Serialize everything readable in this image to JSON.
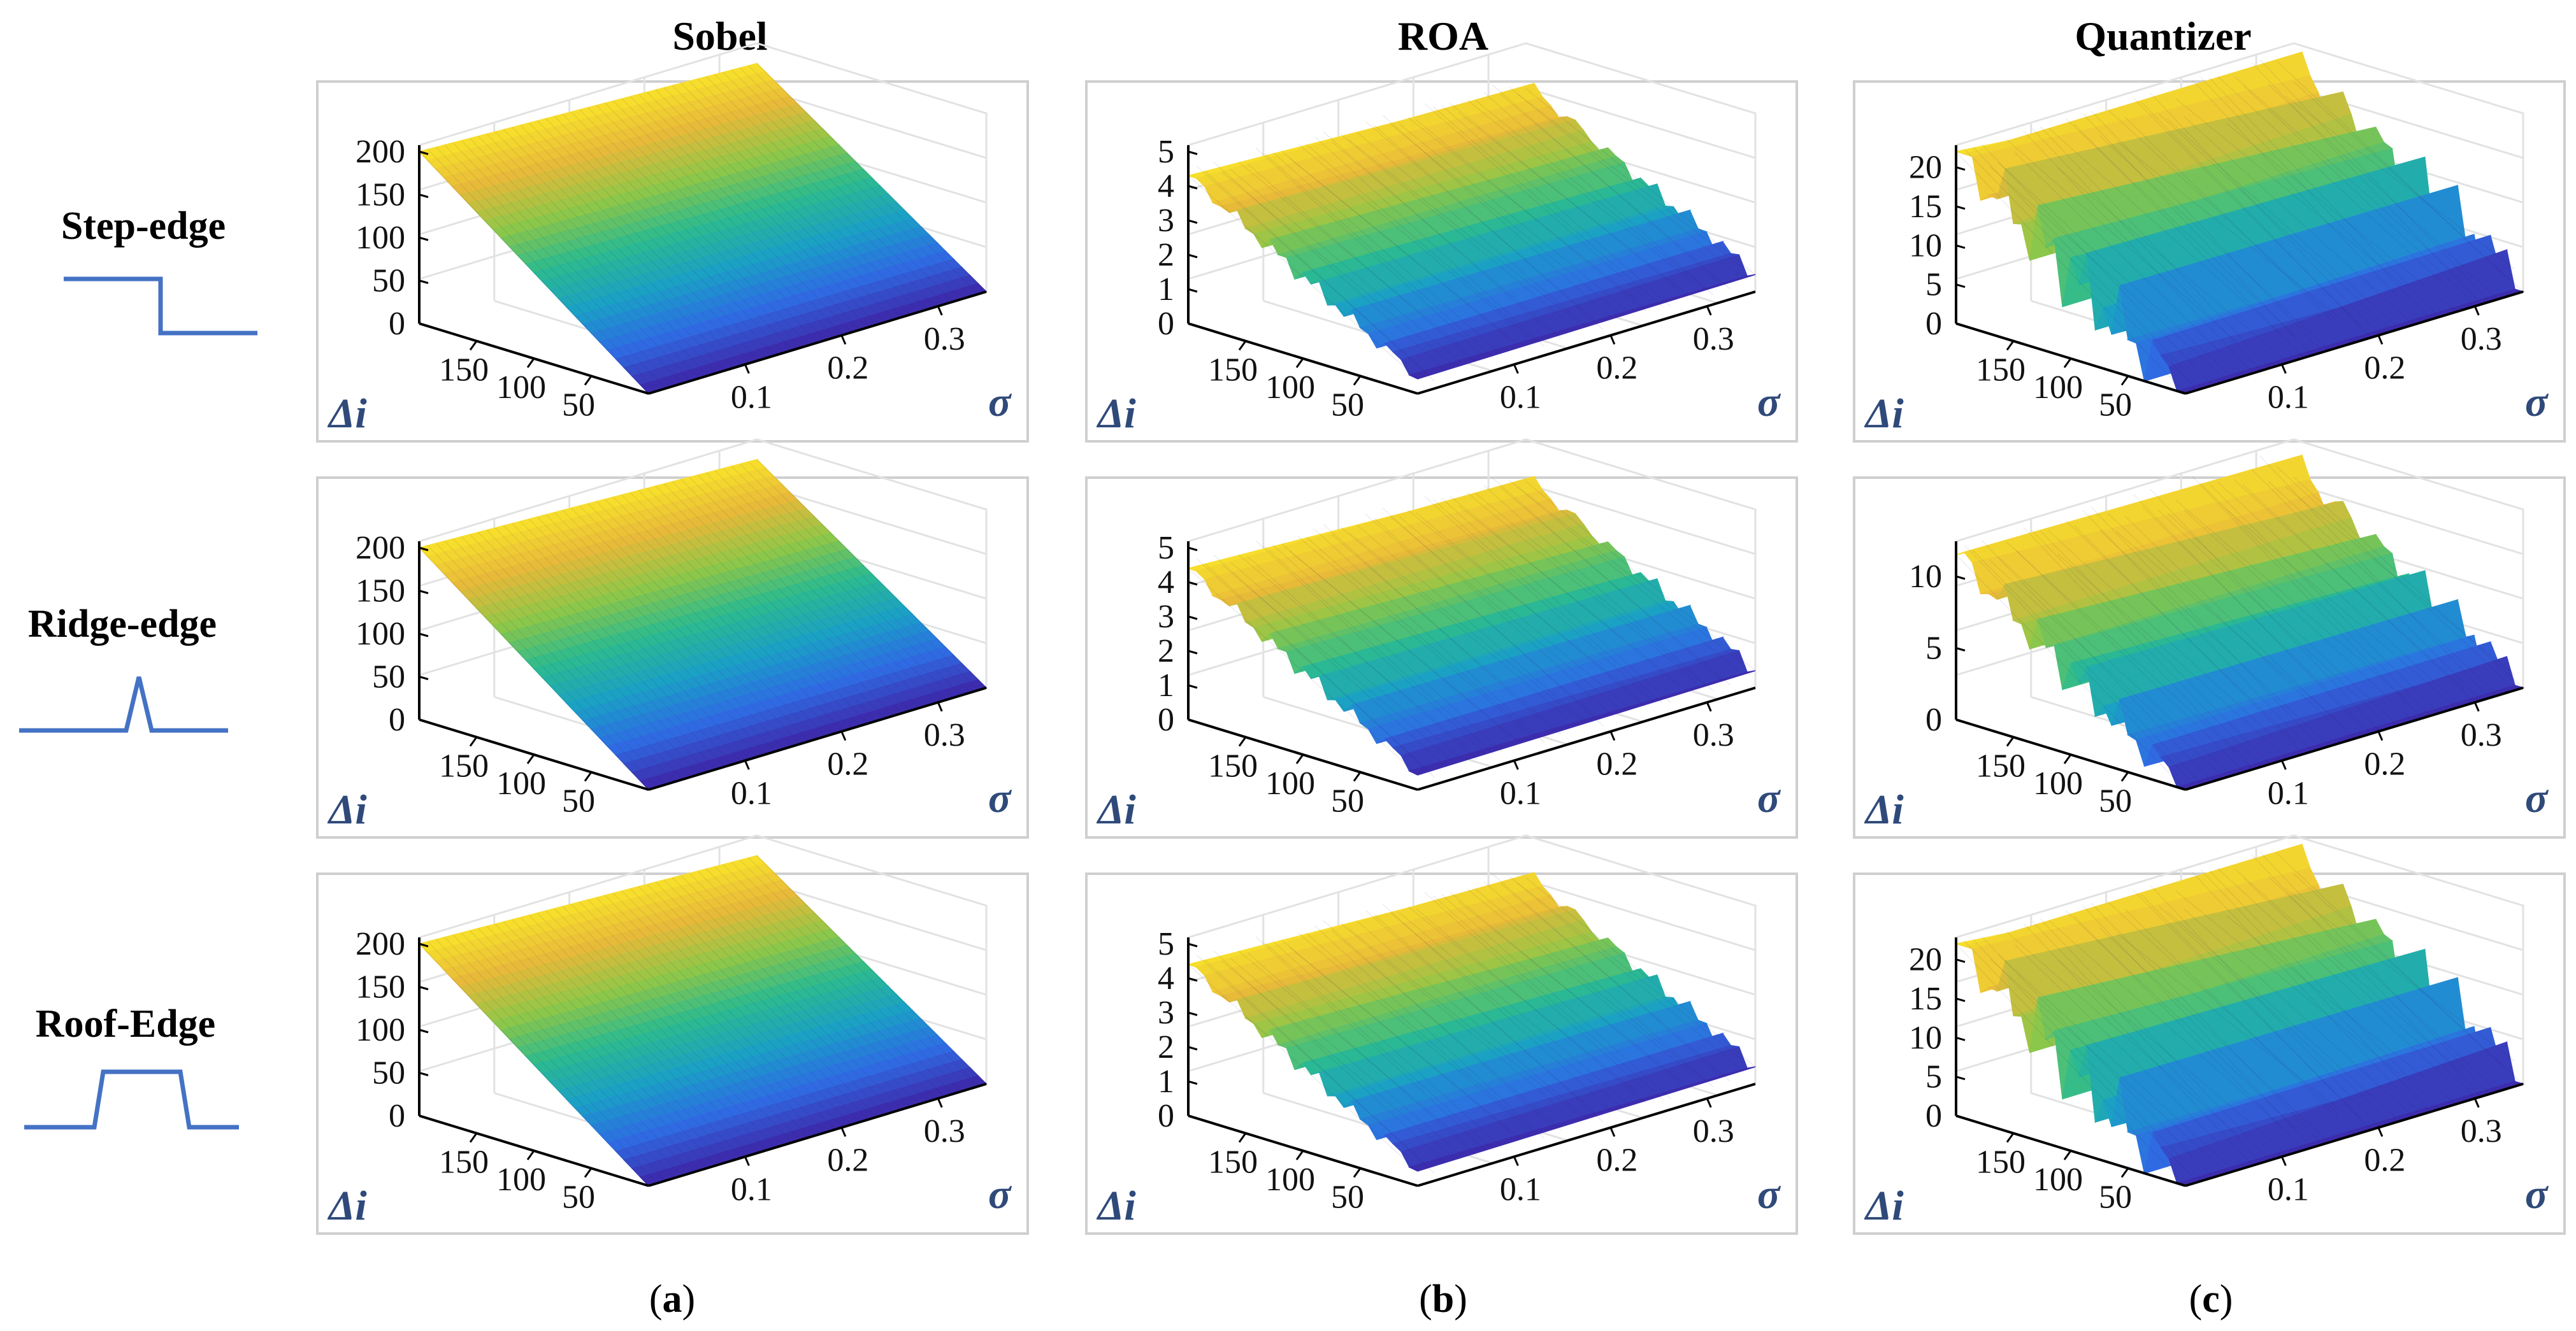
{
  "chart_data": {
    "type": "surface",
    "columns": [
      {
        "title": "Sobel",
        "caption": "a"
      },
      {
        "title": "ROA",
        "caption": "b"
      },
      {
        "title": "Quantizer",
        "caption": "c"
      }
    ],
    "rows": [
      {
        "label": "Step-edge",
        "profile": "step"
      },
      {
        "label": "Ridge-edge",
        "profile": "ridge"
      },
      {
        "label": "Roof-Edge",
        "profile": "roof"
      }
    ],
    "x_axis": {
      "symbol": "Δi",
      "range": [
        0,
        200
      ],
      "ticks": [
        "150",
        "100",
        "50"
      ]
    },
    "y_axis": {
      "symbol": "σ",
      "range": [
        0,
        0.35
      ],
      "ticks": [
        "0.1",
        "0.2",
        "0.3"
      ]
    },
    "panels": [
      {
        "id": "a1",
        "row": "Step-edge",
        "method": "Sobel",
        "zlim": [
          0,
          200
        ],
        "z_ticks": [
          "200",
          "150",
          "100",
          "50",
          "0"
        ],
        "z_max": 200,
        "z_min": 0,
        "noise": 0
      },
      {
        "id": "b1",
        "row": "Step-edge",
        "method": "ROA",
        "zlim": [
          0,
          5
        ],
        "z_ticks": [
          "5",
          "4",
          "3",
          "2",
          "1",
          "0"
        ],
        "z_max": 4.3,
        "z_min": 0.5,
        "noise": 0.06
      },
      {
        "id": "c1",
        "row": "Step-edge",
        "method": "Quantizer",
        "zlim": [
          0,
          22
        ],
        "z_ticks": [
          "20",
          "15",
          "10",
          "5",
          "0"
        ],
        "z_max": 22,
        "z_min": 0,
        "noise": 0.25
      },
      {
        "id": "a2",
        "row": "Ridge-edge",
        "method": "Sobel",
        "zlim": [
          0,
          200
        ],
        "z_ticks": [
          "200",
          "150",
          "100",
          "50",
          "0"
        ],
        "z_max": 200,
        "z_min": 0,
        "noise": 0
      },
      {
        "id": "b2",
        "row": "Ridge-edge",
        "method": "ROA",
        "zlim": [
          0,
          5
        ],
        "z_ticks": [
          "5",
          "4",
          "3",
          "2",
          "1",
          "0"
        ],
        "z_max": 4.4,
        "z_min": 0.5,
        "noise": 0.06
      },
      {
        "id": "c2",
        "row": "Ridge-edge",
        "method": "Quantizer",
        "zlim": [
          0,
          12
        ],
        "z_ticks": [
          "10",
          "5",
          "0"
        ],
        "z_max": 11.5,
        "z_min": 0,
        "noise": 0.15
      },
      {
        "id": "a3",
        "row": "Roof-Edge",
        "method": "Sobel",
        "zlim": [
          0,
          200
        ],
        "z_ticks": [
          "200",
          "150",
          "100",
          "50",
          "0"
        ],
        "z_max": 200,
        "z_min": 0,
        "noise": 0
      },
      {
        "id": "b3",
        "row": "Roof-Edge",
        "method": "ROA",
        "zlim": [
          0,
          5
        ],
        "z_ticks": [
          "5",
          "4",
          "3",
          "2",
          "1",
          "0"
        ],
        "z_max": 4.4,
        "z_min": 0.5,
        "noise": 0.06
      },
      {
        "id": "c3",
        "row": "Roof-Edge",
        "method": "Quantizer",
        "zlim": [
          0,
          22
        ],
        "z_ticks": [
          "20",
          "15",
          "10",
          "5",
          "0"
        ],
        "z_max": 22,
        "z_min": 0,
        "noise": 0.25
      }
    ],
    "colormap": [
      "#3e26a8",
      "#2f6ce4",
      "#1aa0c6",
      "#2cbb8f",
      "#8ec747",
      "#e7b93a",
      "#f9e22a"
    ]
  }
}
